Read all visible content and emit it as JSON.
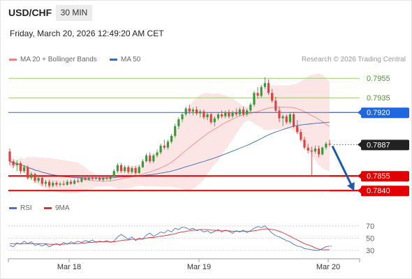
{
  "header": {
    "pair": "USD/CHF",
    "timeframe": "30 MIN",
    "datetime": "Friday, March 20, 2026 12:49:20 AM CET"
  },
  "legend": {
    "bb": "MA 20 + Bollinger Bands",
    "ma50": "MA 50",
    "rsi": "RSI",
    "ma9": "9MA"
  },
  "credit": "Research © 2026 Trading Central",
  "colors": {
    "up": "#3a9a3a",
    "down": "#e04040",
    "ma50": "#3c6ab4",
    "resistance": "#9ccc6e",
    "support": "#e30000",
    "pivot": "#1f66e0",
    "current": "#222222"
  },
  "chart_data": [
    {
      "type": "candlestick",
      "title": "USD/CHF 30 MIN",
      "x_ticks": [
        "Mar 18",
        "Mar 19",
        "Mar 20"
      ],
      "ylim": [
        0.7833,
        0.7963
      ],
      "levels": [
        {
          "value": 0.7955,
          "label": "0.7955",
          "kind": "resistance"
        },
        {
          "value": 0.7935,
          "label": "0.7935",
          "kind": "resistance"
        },
        {
          "value": 0.792,
          "label": "0.7920",
          "kind": "pivot"
        },
        {
          "value": 0.7887,
          "label": "0.7887",
          "kind": "current"
        },
        {
          "value": 0.7855,
          "label": "0.7855",
          "kind": "support"
        },
        {
          "value": 0.784,
          "label": "0.7840",
          "kind": "support"
        }
      ],
      "candles": [
        [
          0.788,
          0.7883,
          0.7866,
          0.787
        ],
        [
          0.787,
          0.7872,
          0.7863,
          0.7866
        ],
        [
          0.7866,
          0.7871,
          0.786,
          0.7868
        ],
        [
          0.7868,
          0.787,
          0.7857,
          0.786
        ],
        [
          0.786,
          0.7866,
          0.7858,
          0.7864
        ],
        [
          0.7864,
          0.7866,
          0.7851,
          0.7853
        ],
        [
          0.7853,
          0.7859,
          0.7851,
          0.7857
        ],
        [
          0.7857,
          0.7858,
          0.7848,
          0.785
        ],
        [
          0.785,
          0.7855,
          0.7848,
          0.7853
        ],
        [
          0.7853,
          0.7855,
          0.7845,
          0.7847
        ],
        [
          0.7847,
          0.7851,
          0.7844,
          0.7849
        ],
        [
          0.7849,
          0.7851,
          0.7843,
          0.7845
        ],
        [
          0.7845,
          0.785,
          0.7843,
          0.7848
        ],
        [
          0.7848,
          0.785,
          0.7844,
          0.7846
        ],
        [
          0.7846,
          0.7849,
          0.7844,
          0.7847
        ],
        [
          0.7847,
          0.785,
          0.7845,
          0.7846
        ],
        [
          0.7846,
          0.7851,
          0.7845,
          0.7849
        ],
        [
          0.7849,
          0.7851,
          0.7846,
          0.7847
        ],
        [
          0.7847,
          0.7852,
          0.7846,
          0.785
        ],
        [
          0.785,
          0.7853,
          0.7848,
          0.7849
        ],
        [
          0.7849,
          0.7855,
          0.7848,
          0.7853
        ],
        [
          0.7853,
          0.7855,
          0.785,
          0.7851
        ],
        [
          0.7851,
          0.7855,
          0.785,
          0.7853
        ],
        [
          0.7853,
          0.7855,
          0.7851,
          0.7852
        ],
        [
          0.7852,
          0.7855,
          0.7851,
          0.7853
        ],
        [
          0.7853,
          0.7855,
          0.785,
          0.7851
        ],
        [
          0.7851,
          0.7854,
          0.7849,
          0.7853
        ],
        [
          0.7853,
          0.7855,
          0.7851,
          0.7852
        ],
        [
          0.7852,
          0.7855,
          0.785,
          0.7854
        ],
        [
          0.7854,
          0.7862,
          0.7853,
          0.786
        ],
        [
          0.786,
          0.7868,
          0.7858,
          0.7866
        ],
        [
          0.7866,
          0.7868,
          0.7858,
          0.786
        ],
        [
          0.786,
          0.7866,
          0.7858,
          0.7864
        ],
        [
          0.7864,
          0.7866,
          0.7857,
          0.7859
        ],
        [
          0.7859,
          0.7865,
          0.7857,
          0.7863
        ],
        [
          0.7863,
          0.7865,
          0.7856,
          0.7858
        ],
        [
          0.7858,
          0.7866,
          0.7857,
          0.7864
        ],
        [
          0.7864,
          0.7872,
          0.7863,
          0.787
        ],
        [
          0.787,
          0.7878,
          0.7869,
          0.7876
        ],
        [
          0.7876,
          0.7879,
          0.7868,
          0.787
        ],
        [
          0.787,
          0.7878,
          0.7868,
          0.7876
        ],
        [
          0.7876,
          0.7882,
          0.7874,
          0.7879
        ],
        [
          0.7879,
          0.7888,
          0.7877,
          0.7886
        ],
        [
          0.7886,
          0.7892,
          0.7882,
          0.7884
        ],
        [
          0.7884,
          0.7892,
          0.7882,
          0.789
        ],
        [
          0.789,
          0.7898,
          0.7888,
          0.7896
        ],
        [
          0.7896,
          0.7908,
          0.7894,
          0.7906
        ],
        [
          0.7906,
          0.7915,
          0.7903,
          0.7913
        ],
        [
          0.7913,
          0.792,
          0.791,
          0.7918
        ],
        [
          0.7918,
          0.7926,
          0.7916,
          0.7924
        ],
        [
          0.7924,
          0.7928,
          0.7918,
          0.7921
        ],
        [
          0.7921,
          0.7925,
          0.7917,
          0.7923
        ],
        [
          0.7923,
          0.7926,
          0.7917,
          0.7919
        ],
        [
          0.7919,
          0.7923,
          0.7915,
          0.7921
        ],
        [
          0.7921,
          0.7923,
          0.7913,
          0.7915
        ],
        [
          0.7915,
          0.792,
          0.7912,
          0.7918
        ],
        [
          0.7918,
          0.792,
          0.7908,
          0.791
        ],
        [
          0.791,
          0.7916,
          0.7906,
          0.7914
        ],
        [
          0.7914,
          0.792,
          0.7912,
          0.7918
        ],
        [
          0.7918,
          0.7922,
          0.7914,
          0.7916
        ],
        [
          0.7916,
          0.7922,
          0.7914,
          0.792
        ],
        [
          0.792,
          0.7923,
          0.7914,
          0.7916
        ],
        [
          0.7916,
          0.7922,
          0.7914,
          0.792
        ],
        [
          0.792,
          0.7924,
          0.7916,
          0.7918
        ],
        [
          0.7918,
          0.7925,
          0.7916,
          0.7923
        ],
        [
          0.7923,
          0.7926,
          0.7916,
          0.7918
        ],
        [
          0.7918,
          0.7924,
          0.7916,
          0.7922
        ],
        [
          0.7922,
          0.793,
          0.792,
          0.7928
        ],
        [
          0.7928,
          0.7942,
          0.7926,
          0.794
        ],
        [
          0.794,
          0.7946,
          0.7934,
          0.7937
        ],
        [
          0.7937,
          0.7948,
          0.7935,
          0.7946
        ],
        [
          0.7946,
          0.7956,
          0.7944,
          0.795
        ],
        [
          0.795,
          0.7954,
          0.7938,
          0.794
        ],
        [
          0.794,
          0.7944,
          0.793,
          0.7932
        ],
        [
          0.7932,
          0.7936,
          0.792,
          0.7922
        ],
        [
          0.7922,
          0.7926,
          0.791,
          0.7914
        ],
        [
          0.7914,
          0.7918,
          0.7906,
          0.7916
        ],
        [
          0.7916,
          0.7918,
          0.7908,
          0.791
        ],
        [
          0.791,
          0.792,
          0.7908,
          0.7918
        ],
        [
          0.7918,
          0.792,
          0.7904,
          0.7906
        ],
        [
          0.7906,
          0.7912,
          0.7898,
          0.79
        ],
        [
          0.79,
          0.7903,
          0.789,
          0.7892
        ],
        [
          0.7892,
          0.7895,
          0.7882,
          0.7884
        ],
        [
          0.7884,
          0.7888,
          0.7878,
          0.7881
        ],
        [
          0.7881,
          0.7885,
          0.7855,
          0.788
        ],
        [
          0.788,
          0.7886,
          0.7878,
          0.7883
        ],
        [
          0.7883,
          0.7886,
          0.7874,
          0.7877
        ],
        [
          0.7877,
          0.7885,
          0.7876,
          0.7884
        ],
        [
          0.7884,
          0.789,
          0.7882,
          0.7888
        ],
        [
          0.7888,
          0.7892,
          0.7885,
          0.7887
        ]
      ]
    },
    {
      "type": "line",
      "title": "RSI",
      "ylim": [
        22,
        80
      ],
      "y_ticks": [
        70,
        50,
        30
      ],
      "series": [
        {
          "name": "RSI",
          "values": [
            38,
            36,
            42,
            40,
            45,
            41,
            44,
            38,
            40,
            37,
            40,
            36,
            39,
            41,
            38,
            43,
            40,
            44,
            42,
            45,
            43,
            46,
            44,
            47,
            43,
            45,
            44,
            46,
            43,
            45,
            52,
            56,
            52,
            48,
            52,
            46,
            50,
            48,
            55,
            58,
            53,
            56,
            60,
            58,
            63,
            60,
            66,
            64,
            68,
            67,
            64,
            66,
            62,
            64,
            60,
            62,
            58,
            61,
            64,
            60,
            63,
            61,
            58,
            62,
            60,
            63,
            59,
            62,
            66,
            69,
            67,
            70,
            64,
            58,
            54,
            52,
            49,
            46,
            44,
            40,
            37,
            36,
            33,
            32,
            31,
            30,
            30,
            33,
            36,
            37
          ]
        },
        {
          "name": "9MA",
          "values": [
            41,
            41,
            41,
            41,
            41,
            41,
            41,
            41,
            41,
            41,
            41,
            40,
            40,
            40,
            40,
            40,
            41,
            41,
            41,
            41,
            42,
            42,
            43,
            43,
            44,
            44,
            44,
            44,
            44,
            44,
            45,
            46,
            47,
            47,
            48,
            48,
            48,
            49,
            50,
            51,
            51,
            52,
            53,
            54,
            55,
            56,
            57,
            59,
            60,
            61,
            62,
            63,
            63,
            64,
            64,
            64,
            63,
            63,
            62,
            62,
            62,
            62,
            61,
            61,
            61,
            61,
            61,
            61,
            62,
            63,
            64,
            65,
            65,
            64,
            63,
            61,
            59,
            56,
            53,
            50,
            47,
            44,
            41,
            39,
            37,
            34,
            32,
            31,
            31,
            31
          ]
        }
      ]
    }
  ]
}
